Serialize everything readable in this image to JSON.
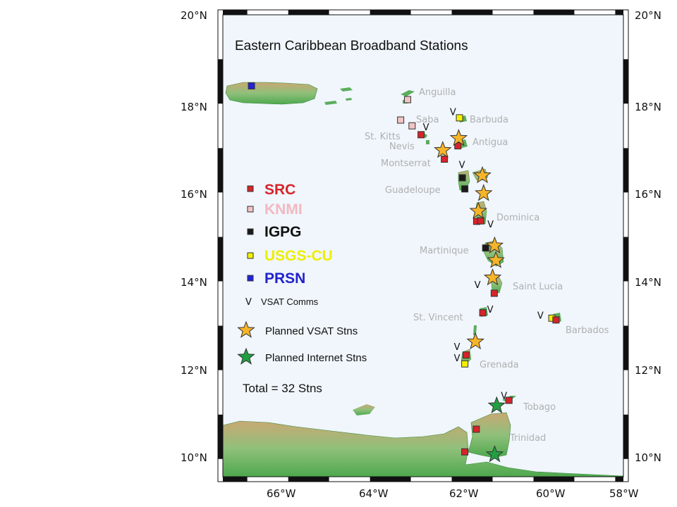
{
  "map": {
    "title": "Eastern Caribbean Broadband Stations",
    "total": "Total = 32 Stns",
    "lat_labels": [
      "20°N",
      "18°N",
      "16°N",
      "14°N",
      "12°N",
      "10°N"
    ],
    "lon_labels": [
      "66°W",
      "64°W",
      "62°W",
      "60°W",
      "58°W"
    ],
    "extent": {
      "lon": [
        -67.6,
        -57.8
      ],
      "lat": [
        9.6,
        20.0
      ]
    },
    "colors": {
      "ocean": "#f0f6fc",
      "land_low": "#5cad5c",
      "land_high": "#c8a874",
      "SRC": "#d6242a",
      "KNMI": "#f2c4c4",
      "IGPG": "#1a1a1a",
      "USGS-CU": "#f5f000",
      "PRSN": "#2222dd",
      "planned_vsat": "#f6b428",
      "planned_internet": "#20a040"
    }
  },
  "islands": [
    "Anguilla",
    "Saba",
    "Barbuda",
    "St. Kitts",
    "Nevis",
    "Antigua",
    "Montserrat",
    "Guadeloupe",
    "Dominica",
    "Martinique",
    "Saint Lucia",
    "St. Vincent",
    "Barbados",
    "Grenada",
    "Tobago",
    "Trinidad"
  ],
  "legend": {
    "networks": [
      {
        "name": "SRC",
        "color": "#d6242a",
        "text_color": "#d6242a"
      },
      {
        "name": "KNMI",
        "color": "#f2c4c4",
        "text_color": "#f2b8c0"
      },
      {
        "name": "IGPG",
        "color": "#1a1a1a",
        "text_color": "#111111"
      },
      {
        "name": "USGS-CU",
        "color": "#f5f000",
        "text_color": "#eeee00"
      },
      {
        "name": "PRSN",
        "color": "#2222dd",
        "text_color": "#2222cc"
      }
    ],
    "vsat_symbol": "V",
    "vsat_label": "VSAT Comms",
    "planned_vsat_label": "Planned VSAT Stns",
    "planned_internet_label": "Planned Internet Stns"
  },
  "stations": [
    {
      "network": "PRSN",
      "lon": -66.9,
      "lat": 18.4
    },
    {
      "network": "KNMI",
      "lon": -63.08,
      "lat": 18.09
    },
    {
      "network": "KNMI",
      "lon": -63.25,
      "lat": 17.63
    },
    {
      "network": "KNMI",
      "lon": -62.97,
      "lat": 17.5
    },
    {
      "network": "SRC",
      "lon": -62.75,
      "lat": 17.3
    },
    {
      "network": "USGS-CU",
      "lon": -61.81,
      "lat": 17.68
    },
    {
      "network": "SRC",
      "lon": -61.85,
      "lat": 17.05
    },
    {
      "network": "SRC",
      "lon": -62.18,
      "lat": 16.75
    },
    {
      "network": "IGPG",
      "lon": -61.74,
      "lat": 16.33
    },
    {
      "network": "IGPG",
      "lon": -61.68,
      "lat": 16.08
    },
    {
      "network": "SRC",
      "lon": -61.39,
      "lat": 15.35
    },
    {
      "network": "SRC",
      "lon": -61.29,
      "lat": 15.36
    },
    {
      "network": "IGPG",
      "lon": -61.17,
      "lat": 14.75
    },
    {
      "network": "SRC",
      "lon": -60.96,
      "lat": 13.73
    },
    {
      "network": "SRC",
      "lon": -61.24,
      "lat": 13.29
    },
    {
      "network": "USGS-CU",
      "lon": -59.55,
      "lat": 13.17
    },
    {
      "network": "SRC",
      "lon": -59.45,
      "lat": 13.13
    },
    {
      "network": "SRC",
      "lon": -61.65,
      "lat": 12.34
    },
    {
      "network": "USGS-CU",
      "lon": -61.68,
      "lat": 12.14
    },
    {
      "network": "SRC",
      "lon": -60.6,
      "lat": 11.32
    },
    {
      "network": "SRC",
      "lon": -61.4,
      "lat": 10.67
    },
    {
      "network": "SRC",
      "lon": -61.68,
      "lat": 10.16
    }
  ],
  "planned": [
    {
      "type": "vsat",
      "lon": -61.83,
      "lat": 17.22
    },
    {
      "type": "vsat",
      "lon": -62.22,
      "lat": 16.95
    },
    {
      "type": "vsat",
      "lon": -61.25,
      "lat": 16.38
    },
    {
      "type": "vsat",
      "lon": -61.22,
      "lat": 15.98
    },
    {
      "type": "vsat",
      "lon": -61.35,
      "lat": 15.58
    },
    {
      "type": "vsat",
      "lon": -60.95,
      "lat": 14.8
    },
    {
      "type": "vsat",
      "lon": -60.92,
      "lat": 14.47
    },
    {
      "type": "vsat",
      "lon": -61.0,
      "lat": 14.08
    },
    {
      "type": "vsat",
      "lon": -61.42,
      "lat": 12.64
    },
    {
      "type": "internet",
      "lon": -60.9,
      "lat": 11.2
    },
    {
      "type": "internet",
      "lon": -60.95,
      "lat": 10.1
    }
  ],
  "vsat_marks": [
    {
      "lon": -61.97,
      "lat": 17.74
    },
    {
      "lon": -62.63,
      "lat": 17.4
    },
    {
      "lon": -61.75,
      "lat": 16.55
    },
    {
      "lon": -61.05,
      "lat": 15.21
    },
    {
      "lon": -61.37,
      "lat": 13.85
    },
    {
      "lon": -61.06,
      "lat": 13.29
    },
    {
      "lon": -59.83,
      "lat": 13.16
    },
    {
      "lon": -61.87,
      "lat": 12.45
    },
    {
      "lon": -61.87,
      "lat": 12.2
    },
    {
      "lon": -60.72,
      "lat": 11.35
    }
  ]
}
